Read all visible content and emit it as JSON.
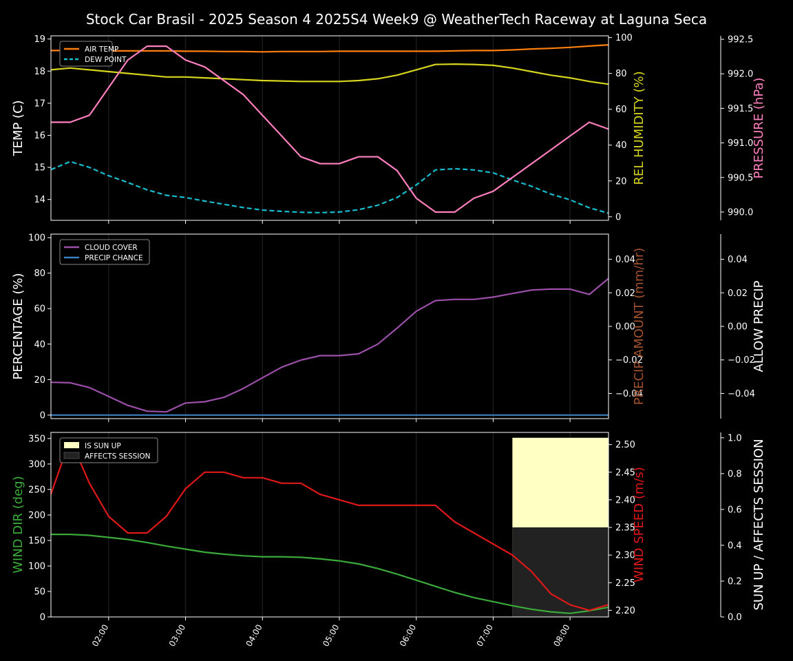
{
  "title": "Stock Car Brasil - 2025 Season 4 2025S4 Week9 @ WeatherTech Raceway at Laguna Seca",
  "colors": {
    "air_temp": "#ff7f0e",
    "dew_point": "#17becf",
    "humidity": "#d6d61e",
    "pressure": "#ff7fbf",
    "cloud": "#9b4fa8",
    "precip_chance": "#3a7fc0",
    "precip_amount": "#a0522d",
    "wind_dir": "#3aaa3a",
    "wind_speed": "#e01818",
    "sun_up": "#ffffc4",
    "affects": "#222222"
  },
  "chart_data": [
    {
      "type": "line",
      "x_ticks": [
        "02:00",
        "03:00",
        "04:00",
        "05:00",
        "06:00",
        "07:00",
        "08:00"
      ],
      "x": [
        "01:15",
        "01:30",
        "01:45",
        "02:00",
        "02:15",
        "02:30",
        "02:45",
        "03:00",
        "03:15",
        "03:30",
        "03:45",
        "04:00",
        "04:15",
        "04:30",
        "04:45",
        "05:00",
        "05:15",
        "05:30",
        "05:45",
        "06:00",
        "06:15",
        "06:30",
        "06:45",
        "07:00",
        "07:15",
        "07:30",
        "07:45",
        "08:00",
        "08:15",
        "08:30"
      ],
      "axes": {
        "left": {
          "label": "TEMP (C)",
          "ylim": [
            13.35,
            19.1
          ],
          "ticks": [
            14,
            15,
            16,
            17,
            18,
            19
          ]
        },
        "right1": {
          "label": "REL HUMIDITY (%)",
          "ylim": [
            -2,
            101
          ],
          "ticks": [
            0,
            20,
            40,
            60,
            80,
            100
          ]
        },
        "right2": {
          "label": "PRESSURE (hPa)",
          "ylim": [
            989.88,
            992.55
          ],
          "ticks": [
            "990.0",
            "990.5",
            "991.0",
            "991.5",
            "992.0",
            "992.5"
          ]
        }
      },
      "legend": {
        "placement": "top-left",
        "entries": [
          "AIR TEMP",
          "DEW POINT"
        ]
      },
      "series": [
        {
          "name": "AIR TEMP",
          "axis": "left",
          "style": "solid",
          "color_key": "air_temp",
          "values": [
            18.64,
            18.64,
            18.63,
            18.63,
            18.63,
            18.63,
            18.63,
            18.62,
            18.62,
            18.61,
            18.61,
            18.6,
            18.61,
            18.61,
            18.61,
            18.62,
            18.62,
            18.62,
            18.62,
            18.62,
            18.62,
            18.63,
            18.64,
            18.64,
            18.66,
            18.69,
            18.71,
            18.74,
            18.78,
            18.82
          ]
        },
        {
          "name": "DEW POINT",
          "axis": "left",
          "style": "dashed",
          "color_key": "dew_point",
          "values": [
            14.93,
            15.18,
            15.0,
            14.74,
            14.53,
            14.3,
            14.13,
            14.06,
            13.95,
            13.85,
            13.75,
            13.67,
            13.63,
            13.6,
            13.59,
            13.61,
            13.68,
            13.82,
            14.06,
            14.45,
            14.92,
            14.96,
            14.92,
            14.83,
            14.61,
            14.41,
            14.17,
            13.99,
            13.74,
            13.57
          ]
        },
        {
          "name": "REL HUMIDITY",
          "axis": "right1",
          "style": "solid",
          "color_key": "humidity",
          "values": [
            82,
            83,
            82,
            81,
            80,
            79,
            78,
            78,
            77.5,
            77,
            76.5,
            76,
            75.8,
            75.5,
            75.5,
            75.5,
            76,
            77,
            79,
            82,
            85,
            85.2,
            85,
            84.5,
            83,
            81,
            79,
            77.5,
            75.5,
            74
          ]
        },
        {
          "name": "PRESSURE",
          "axis": "right2",
          "style": "solid",
          "color_key": "pressure",
          "values": [
            991.3,
            991.3,
            991.4,
            991.8,
            992.2,
            992.4,
            992.4,
            992.2,
            992.1,
            991.9,
            991.7,
            991.4,
            991.1,
            990.8,
            990.7,
            990.7,
            990.8,
            990.8,
            990.6,
            990.2,
            990.0,
            990.0,
            990.2,
            990.3,
            990.5,
            990.7,
            990.9,
            991.1,
            991.3,
            991.2
          ]
        }
      ]
    },
    {
      "type": "line",
      "axes": {
        "left": {
          "label": "PERCENTAGE (%)",
          "ylim": [
            -2,
            102
          ],
          "ticks": [
            0,
            20,
            40,
            60,
            80,
            100
          ]
        },
        "right1": {
          "label": "PRECIP AMOUNT (mm/hr)",
          "ylim": [
            -0.055,
            0.055
          ],
          "ticks": [
            "−0.04",
            "−0.02",
            "0.00",
            "0.02",
            "0.04"
          ]
        },
        "right2": {
          "label": "ALLOW PRECIP",
          "ylim": [
            -0.055,
            0.055
          ],
          "ticks": [
            "−0.04",
            "−0.02",
            "0.00",
            "0.02",
            "0.04"
          ]
        }
      },
      "legend": {
        "placement": "top-left",
        "entries": [
          "CLOUD COVER",
          "PRECIP CHANCE"
        ]
      },
      "series": [
        {
          "name": "CLOUD COVER",
          "axis": "left",
          "color_key": "cloud",
          "values": [
            18.5,
            18.2,
            15.5,
            10.5,
            5.5,
            2.2,
            1.8,
            6.8,
            7.5,
            10,
            15,
            21,
            27,
            31,
            33.5,
            33.5,
            34.5,
            40,
            49,
            58.5,
            64.5,
            65.2,
            65.2,
            66.5,
            68.5,
            70.5,
            71,
            71,
            68,
            77
          ]
        },
        {
          "name": "PRECIP CHANCE",
          "axis": "left",
          "color_key": "precip_chance",
          "values": [
            0,
            0,
            0,
            0,
            0,
            0,
            0,
            0,
            0,
            0,
            0,
            0,
            0,
            0,
            0,
            0,
            0,
            0,
            0,
            0,
            0,
            0,
            0,
            0,
            0,
            0,
            0,
            0,
            0,
            0
          ]
        }
      ]
    },
    {
      "type": "line",
      "axes": {
        "left": {
          "label": "WIND DIR (deg)",
          "ylim": [
            0,
            362
          ],
          "ticks": [
            0,
            50,
            100,
            150,
            200,
            250,
            300,
            350
          ]
        },
        "right1": {
          "label": "WIND SPEED (m/s)",
          "ylim": [
            2.188,
            2.522
          ],
          "ticks": [
            "2.20",
            "2.25",
            "2.30",
            "2.35",
            "2.40",
            "2.45",
            "2.50"
          ]
        },
        "right2": {
          "label": "SUN UP / AFFECTS SESSION",
          "ylim": [
            0,
            1.03
          ],
          "ticks": [
            "0.0",
            "0.2",
            "0.4",
            "0.6",
            "0.8",
            "1.0"
          ]
        }
      },
      "legend": {
        "placement": "top-left",
        "entries": [
          "IS SUN UP",
          "AFFECTS SESSION"
        ]
      },
      "bands": [
        {
          "name": "IS SUN UP",
          "from": "07:15",
          "to": "08:30",
          "value": 1.0,
          "color_key": "sun_up"
        },
        {
          "name": "AFFECTS SESSION",
          "from": "07:15",
          "to": "08:30",
          "value": 0.5,
          "color_key": "affects"
        }
      ],
      "series": [
        {
          "name": "WIND DIR",
          "axis": "left",
          "color_key": "wind_dir",
          "values": [
            162,
            162,
            160,
            156,
            152,
            146,
            139,
            133,
            127,
            123,
            120,
            118,
            118,
            117,
            114,
            110,
            104,
            95,
            84,
            72,
            60,
            48,
            38,
            30,
            22,
            15,
            10,
            7,
            12,
            19
          ]
        },
        {
          "name": "WIND SPEED",
          "axis": "right1",
          "color_key": "wind_speed",
          "values": [
            2.41,
            2.51,
            2.43,
            2.37,
            2.34,
            2.34,
            2.37,
            2.42,
            2.45,
            2.45,
            2.44,
            2.44,
            2.43,
            2.43,
            2.41,
            2.4,
            2.39,
            2.39,
            2.39,
            2.39,
            2.39,
            2.36,
            2.34,
            2.32,
            2.3,
            2.27,
            2.23,
            2.21,
            2.2,
            2.21
          ]
        }
      ]
    }
  ]
}
